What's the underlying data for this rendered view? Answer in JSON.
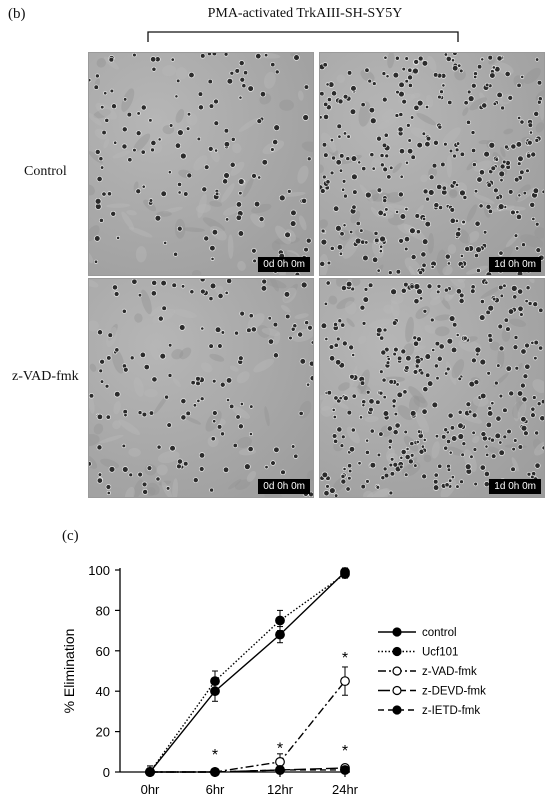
{
  "panel_b": {
    "label": "(b)",
    "title": "PMA-activated TrkAIII-SH-SY5Y",
    "rows": [
      {
        "label": "Control",
        "images": [
          {
            "timestamp": "0d 0h 0m",
            "density": "sparse"
          },
          {
            "timestamp": "1d 0h 0m",
            "density": "dense"
          }
        ]
      },
      {
        "label": "z-VAD-fmk",
        "images": [
          {
            "timestamp": "0d 0h 0m",
            "density": "sparse"
          },
          {
            "timestamp": "1d 0h 0m",
            "density": "dense"
          }
        ]
      }
    ]
  },
  "panel_c": {
    "label": "(c)"
  },
  "chart_data": {
    "type": "line",
    "title": "",
    "xlabel": "",
    "ylabel": "% Elimination",
    "categories": [
      "0hr",
      "6hr",
      "12hr",
      "24hr"
    ],
    "ylim": [
      0,
      100
    ],
    "yticks": [
      "0",
      "20",
      "40",
      "60",
      "80",
      "100"
    ],
    "series": [
      {
        "name": "control",
        "values": [
          0,
          40,
          68,
          99
        ],
        "errors": [
          3,
          5,
          4,
          2
        ],
        "marker": "filled",
        "dash": "solid"
      },
      {
        "name": "Ucf101",
        "values": [
          0,
          45,
          75,
          98
        ],
        "errors": [
          3,
          5,
          5,
          2
        ],
        "marker": "filled",
        "dash": "dotted"
      },
      {
        "name": "z-VAD-fmk",
        "values": [
          0,
          0,
          5,
          45
        ],
        "errors": [
          2,
          1,
          4,
          7
        ],
        "marker": "open",
        "dash": "dashdot"
      },
      {
        "name": "z-DEVD-fmk",
        "values": [
          0,
          0,
          1,
          2
        ],
        "errors": [
          1,
          1,
          1,
          1
        ],
        "marker": "open",
        "dash": "longdash"
      },
      {
        "name": "z-IETD-fmk",
        "values": [
          0,
          0,
          1,
          1
        ],
        "errors": [
          1,
          1,
          1,
          1
        ],
        "marker": "filled",
        "dash": "dash"
      }
    ],
    "annotations": [
      {
        "text": "*",
        "x": "6hr",
        "y": 10
      },
      {
        "text": "*",
        "x": "12hr",
        "y": 13
      },
      {
        "text": "*",
        "x": "24hr",
        "y": 58
      },
      {
        "text": "*",
        "x": "24hr",
        "y": 12
      }
    ],
    "legend_position": "right",
    "grid": false
  }
}
